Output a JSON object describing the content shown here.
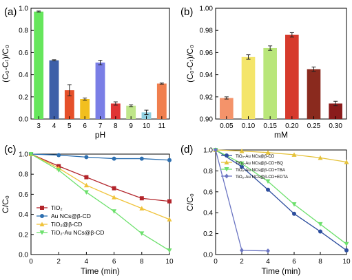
{
  "chart_data": [
    {
      "type": "bar",
      "panel": "(a)",
      "categories": [
        "3",
        "4",
        "5",
        "6",
        "7",
        "8",
        "9",
        "10",
        "11"
      ],
      "values": [
        0.97,
        0.53,
        0.26,
        0.18,
        0.51,
        0.14,
        0.12,
        0.06,
        0.32
      ],
      "errors": [
        0.005,
        0.005,
        0.05,
        0.01,
        0.02,
        0.015,
        0.008,
        0.02,
        0.005
      ],
      "colors": [
        "#66e65c",
        "#3d5fa8",
        "#e5502a",
        "#f2bf1e",
        "#7a7ee6",
        "#e03434",
        "#bfe68a",
        "#8fcfe0",
        "#f07f4e"
      ],
      "xlabel": "pH",
      "ylabel": "(C₀-Cₜ)/C₀",
      "ylim": [
        0,
        1.0
      ],
      "yticks": [
        "0.0",
        "0.2",
        "0.4",
        "0.6",
        "0.8",
        "1.0"
      ]
    },
    {
      "type": "bar",
      "panel": "(b)",
      "categories": [
        "0.05",
        "0.10",
        "0.15",
        "0.20",
        "0.25",
        "0.30"
      ],
      "values": [
        0.919,
        0.956,
        0.964,
        0.976,
        0.945,
        0.914
      ],
      "errors": [
        0.001,
        0.002,
        0.002,
        0.002,
        0.002,
        0.002
      ],
      "colors": [
        "#f4936a",
        "#f4e56a",
        "#b9e67a",
        "#d63a2c",
        "#8a2a1e",
        "#8a1c1c"
      ],
      "xlabel": "mM",
      "ylabel": "(C₀-Cₜ)/C₀",
      "ylim": [
        0.9,
        1.0
      ],
      "yticks": [
        "0.90",
        "0.92",
        "0.94",
        "0.96",
        "0.98",
        "1.00"
      ]
    },
    {
      "type": "line",
      "panel": "(c)",
      "x": [
        0,
        2,
        4,
        6,
        8,
        10
      ],
      "series": [
        {
          "name": "TiO₂",
          "values": [
            1.0,
            0.88,
            0.77,
            0.66,
            0.56,
            0.53
          ],
          "color": "#b2242a",
          "marker": "square"
        },
        {
          "name": "Au NCs@β-CD",
          "values": [
            1.0,
            0.99,
            0.97,
            0.955,
            0.955,
            0.94
          ],
          "color": "#2d6fb0",
          "marker": "circle"
        },
        {
          "name": "TiO₂@β-CD",
          "values": [
            1.0,
            0.86,
            0.69,
            0.57,
            0.46,
            0.35
          ],
          "color": "#f0c33a",
          "marker": "triangle"
        },
        {
          "name": "TiO₂-Au NCs@β-CD",
          "values": [
            1.0,
            0.84,
            0.62,
            0.43,
            0.21,
            0.04
          ],
          "color": "#6de06d",
          "marker": "triangle-down"
        }
      ],
      "xlabel": "Time (min)",
      "ylabel": "C/C₀",
      "xlim": [
        0,
        10
      ],
      "ylim": [
        0,
        1.0
      ],
      "xticks": [
        "0",
        "2",
        "4",
        "6",
        "8",
        "10"
      ],
      "yticks": [
        "0.0",
        "0.2",
        "0.4",
        "0.6",
        "0.8",
        "1.0"
      ],
      "legend": "bottom-left"
    },
    {
      "type": "line",
      "panel": "(d)",
      "x": [
        0,
        2,
        4,
        6,
        8,
        10
      ],
      "series": [
        {
          "name": "TiO₂-Au NCs@β-CD",
          "values": [
            1.0,
            0.84,
            0.62,
            0.39,
            0.22,
            0.04
          ],
          "color": "#2d4e9e",
          "marker": "circle"
        },
        {
          "name": "TiO₂-Au NCs@β-CD+BQ",
          "values": [
            1.0,
            0.99,
            0.975,
            0.955,
            0.925,
            0.885
          ],
          "color": "#e5c23a",
          "marker": "triangle"
        },
        {
          "name": "TiO₂-Au NCs@β-CD+TBA",
          "values": [
            1.0,
            0.87,
            0.7,
            0.48,
            0.29,
            0.1
          ],
          "color": "#6de06d",
          "marker": "triangle-down"
        },
        {
          "name": "TiO₂-Au NCs@β-CD+EDTA",
          "values": [
            1.0,
            0.04,
            0.035,
            null,
            null,
            null
          ],
          "color": "#6a74c2",
          "marker": "diamond"
        }
      ],
      "xlabel": "Time (min)",
      "ylabel": "C/C₀",
      "xlim": [
        0,
        10
      ],
      "ylim": [
        0,
        1.0
      ],
      "xticks": [
        "0",
        "2",
        "4",
        "6",
        "8",
        "10"
      ],
      "yticks": [
        "0.0",
        "0.2",
        "0.4",
        "0.6",
        "0.8",
        "1.0"
      ],
      "legend": "top-left"
    }
  ]
}
